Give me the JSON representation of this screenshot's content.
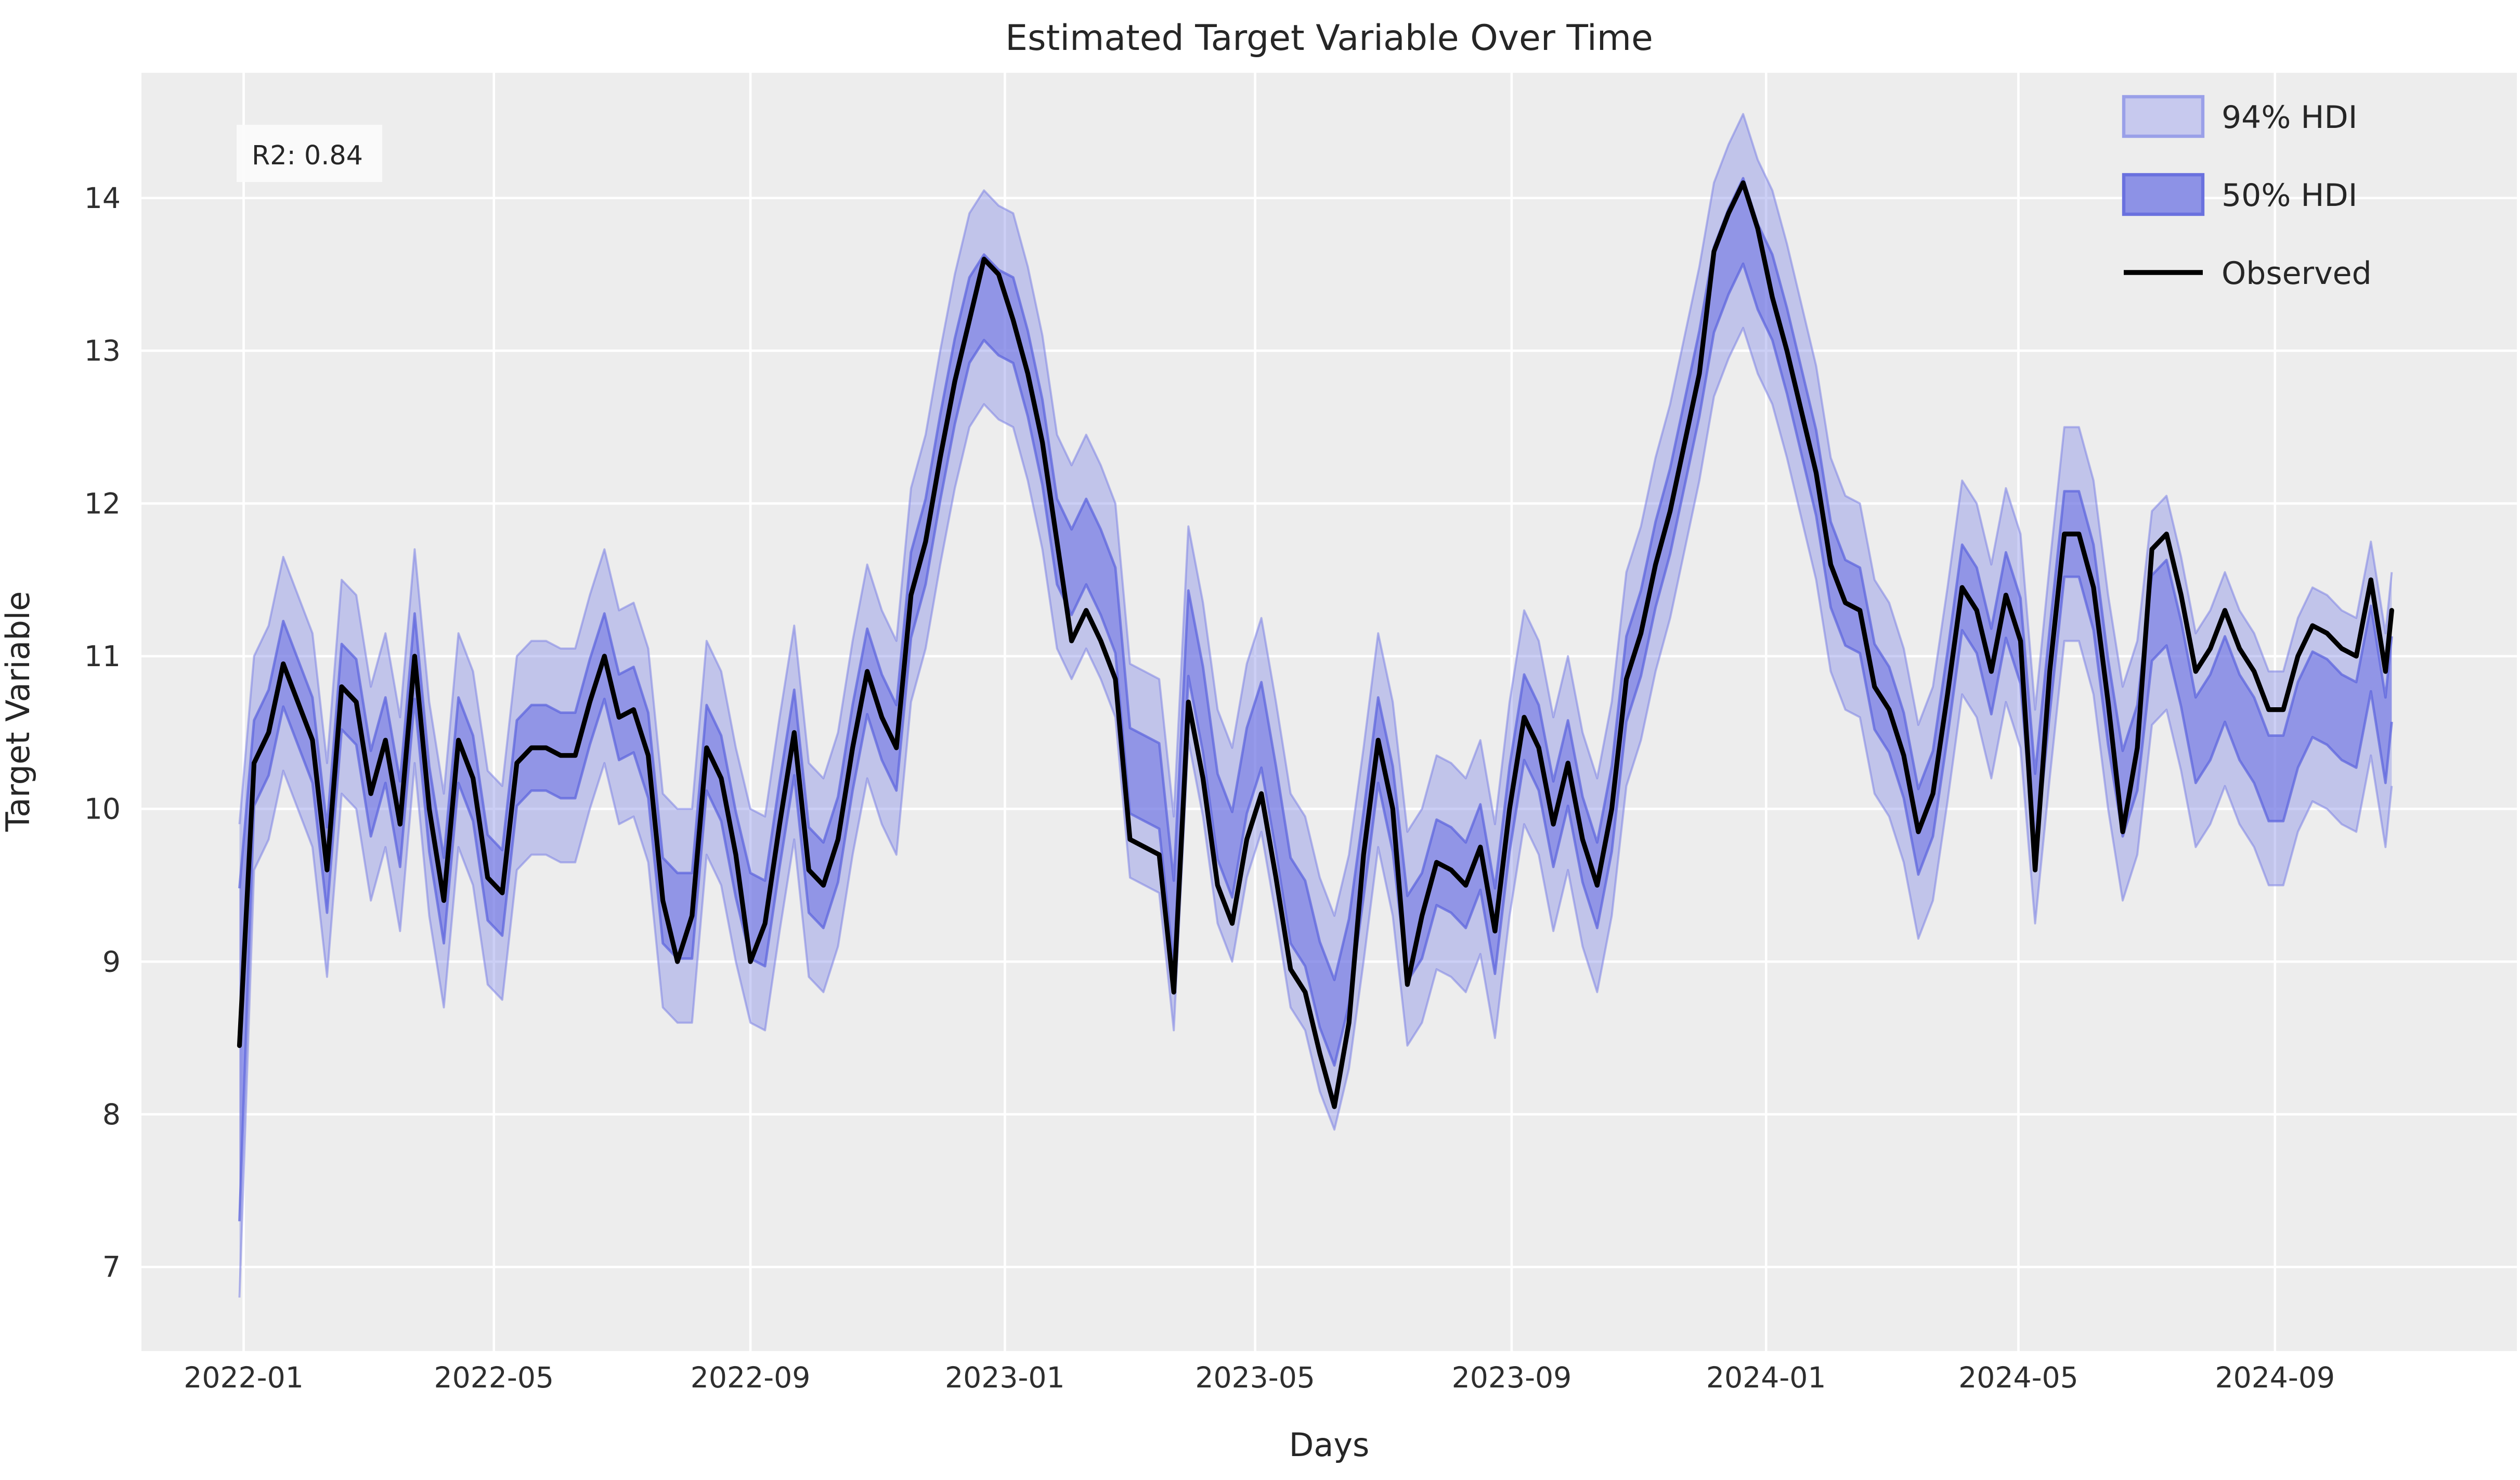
{
  "figure": {
    "title": "Estimated Target Variable Over Time",
    "xlabel": "Days",
    "ylabel": "Target Variable",
    "annotation_r2": "R2: 0.84"
  },
  "legend": {
    "position": "upper right",
    "items": [
      {
        "label": "94% HDI",
        "type": "patch"
      },
      {
        "label": "50% HDI",
        "type": "patch"
      },
      {
        "label": "Observed",
        "type": "line"
      }
    ]
  },
  "chart_data": {
    "type": "line",
    "title": "Estimated Target Variable Over Time",
    "xlabel": "Days",
    "ylabel": "Target Variable",
    "grid": true,
    "legend_position": "upper right",
    "annotation": {
      "text": "R2: 0.84"
    },
    "xlim": [
      "2021-11-13",
      "2024-12-26"
    ],
    "ylim": [
      6.45,
      14.82
    ],
    "ytick_values": [
      7,
      8,
      9,
      10,
      11,
      12,
      13,
      14
    ],
    "xtick_labels": [
      "2022-01",
      "2022-05",
      "2022-09",
      "2023-01",
      "2023-05",
      "2023-09",
      "2024-01",
      "2024-05",
      "2024-09"
    ],
    "xtick_dates": [
      "2022-01-01",
      "2022-05-01",
      "2022-09-01",
      "2023-01-01",
      "2023-05-01",
      "2023-09-01",
      "2024-01-01",
      "2024-05-01",
      "2024-09-01"
    ],
    "colors": {
      "figure_bg": "#ffffff",
      "axes_bg": "#ededed",
      "grid": "#ffffff",
      "observed": "#000000",
      "hdi94_fill": "#c7c9ee",
      "hdi94_edge": "#9aa0e8",
      "hdi50_fill": "#8d92e6",
      "hdi50_edge": "#6a71de",
      "text": "#262626",
      "annotation_bg": "#fbfbfb"
    },
    "dates": [
      "2021-12-30",
      "2022-01-06",
      "2022-01-13",
      "2022-01-20",
      "2022-01-27",
      "2022-02-03",
      "2022-02-10",
      "2022-02-17",
      "2022-02-24",
      "2022-03-03",
      "2022-03-10",
      "2022-03-17",
      "2022-03-24",
      "2022-03-31",
      "2022-04-07",
      "2022-04-14",
      "2022-04-21",
      "2022-04-28",
      "2022-05-05",
      "2022-05-12",
      "2022-05-19",
      "2022-05-26",
      "2022-06-02",
      "2022-06-09",
      "2022-06-16",
      "2022-06-23",
      "2022-06-30",
      "2022-07-07",
      "2022-07-14",
      "2022-07-21",
      "2022-07-28",
      "2022-08-04",
      "2022-08-11",
      "2022-08-18",
      "2022-08-25",
      "2022-09-01",
      "2022-09-08",
      "2022-09-15",
      "2022-09-22",
      "2022-09-29",
      "2022-10-06",
      "2022-10-13",
      "2022-10-20",
      "2022-10-27",
      "2022-11-03",
      "2022-11-10",
      "2022-11-17",
      "2022-11-24",
      "2022-12-01",
      "2022-12-08",
      "2022-12-15",
      "2022-12-22",
      "2022-12-29",
      "2023-01-05",
      "2023-01-12",
      "2023-01-19",
      "2023-01-26",
      "2023-02-02",
      "2023-02-09",
      "2023-02-16",
      "2023-02-23",
      "2023-03-02",
      "2023-03-09",
      "2023-03-16",
      "2023-03-23",
      "2023-03-30",
      "2023-04-06",
      "2023-04-13",
      "2023-04-20",
      "2023-04-27",
      "2023-05-04",
      "2023-05-11",
      "2023-05-18",
      "2023-05-25",
      "2023-06-01",
      "2023-06-08",
      "2023-06-15",
      "2023-06-22",
      "2023-06-29",
      "2023-07-06",
      "2023-07-13",
      "2023-07-20",
      "2023-07-27",
      "2023-08-03",
      "2023-08-10",
      "2023-08-17",
      "2023-08-24",
      "2023-08-31",
      "2023-09-07",
      "2023-09-14",
      "2023-09-21",
      "2023-09-28",
      "2023-10-05",
      "2023-10-12",
      "2023-10-19",
      "2023-10-26",
      "2023-11-02",
      "2023-11-09",
      "2023-11-16",
      "2023-11-23",
      "2023-11-30",
      "2023-12-07",
      "2023-12-14",
      "2023-12-21",
      "2023-12-28",
      "2024-01-04",
      "2024-01-11",
      "2024-01-18",
      "2024-01-25",
      "2024-02-01",
      "2024-02-08",
      "2024-02-15",
      "2024-02-22",
      "2024-02-29",
      "2024-03-07",
      "2024-03-14",
      "2024-03-21",
      "2024-03-28",
      "2024-04-04",
      "2024-04-11",
      "2024-04-18",
      "2024-04-25",
      "2024-05-02",
      "2024-05-09",
      "2024-05-16",
      "2024-05-23",
      "2024-05-30",
      "2024-06-06",
      "2024-06-13",
      "2024-06-20",
      "2024-06-27",
      "2024-07-04",
      "2024-07-11",
      "2024-07-18",
      "2024-07-25",
      "2024-08-01",
      "2024-08-08",
      "2024-08-15",
      "2024-08-22",
      "2024-08-29",
      "2024-09-05",
      "2024-09-12",
      "2024-09-19",
      "2024-09-26",
      "2024-10-03",
      "2024-10-10",
      "2024-10-17",
      "2024-10-24",
      "2024-10-27"
    ],
    "series": [
      {
        "name": "Observed",
        "values": [
          8.45,
          10.3,
          10.5,
          10.95,
          10.7,
          10.45,
          9.6,
          10.8,
          10.7,
          10.1,
          10.45,
          9.9,
          11.0,
          10.0,
          9.4,
          10.45,
          10.2,
          9.55,
          9.45,
          10.3,
          10.4,
          10.4,
          10.35,
          10.35,
          10.7,
          11.0,
          10.6,
          10.65,
          10.35,
          9.4,
          9.0,
          9.3,
          10.4,
          10.2,
          9.7,
          9.0,
          9.25,
          9.9,
          10.5,
          9.6,
          9.5,
          9.8,
          10.4,
          10.9,
          10.6,
          10.4,
          11.4,
          11.75,
          12.3,
          12.8,
          13.2,
          13.6,
          13.5,
          13.2,
          12.85,
          12.4,
          11.75,
          11.1,
          11.3,
          11.1,
          10.85,
          9.8,
          9.75,
          9.7,
          8.8,
          10.7,
          10.2,
          9.5,
          9.25,
          9.8,
          10.1,
          9.55,
          8.95,
          8.8,
          8.4,
          8.05,
          8.6,
          9.7,
          10.45,
          10.0,
          8.85,
          9.3,
          9.65,
          9.6,
          9.5,
          9.75,
          9.2,
          10.0,
          10.6,
          10.4,
          9.9,
          10.3,
          9.8,
          9.5,
          10.0,
          10.85,
          11.15,
          11.6,
          11.95,
          12.4,
          12.85,
          13.65,
          13.9,
          14.1,
          13.8,
          13.35,
          13.0,
          12.6,
          12.2,
          11.6,
          11.35,
          11.3,
          10.8,
          10.65,
          10.35,
          9.85,
          10.1,
          10.75,
          11.45,
          11.3,
          10.9,
          11.4,
          11.1,
          9.6,
          10.9,
          11.8,
          11.8,
          11.45,
          10.7,
          9.85,
          10.4,
          11.7,
          11.8,
          11.4,
          10.9,
          11.05,
          11.3,
          11.05,
          10.9,
          10.65,
          10.65,
          11.0,
          11.2,
          11.15,
          11.05,
          11.0,
          11.5,
          10.9,
          11.3
        ]
      }
    ],
    "posterior_mean": [
      9.2,
      10.3,
      10.5,
      10.95,
      10.7,
      10.45,
      9.6,
      10.8,
      10.7,
      10.1,
      10.45,
      9.9,
      11.0,
      10.0,
      9.4,
      10.45,
      10.2,
      9.55,
      9.45,
      10.3,
      10.4,
      10.4,
      10.35,
      10.35,
      10.7,
      11.0,
      10.6,
      10.65,
      10.35,
      9.4,
      9.3,
      9.3,
      10.4,
      10.2,
      9.7,
      9.3,
      9.25,
      9.9,
      10.5,
      9.6,
      9.5,
      9.8,
      10.4,
      10.9,
      10.6,
      10.4,
      11.4,
      11.75,
      12.3,
      12.8,
      13.2,
      13.35,
      13.25,
      13.2,
      12.85,
      12.4,
      11.75,
      11.55,
      11.75,
      11.55,
      11.3,
      10.25,
      10.2,
      10.15,
      9.25,
      11.15,
      10.65,
      9.95,
      9.7,
      10.25,
      10.55,
      10.0,
      9.4,
      9.25,
      8.85,
      8.6,
      9.0,
      9.7,
      10.45,
      10.0,
      9.15,
      9.3,
      9.65,
      9.6,
      9.5,
      9.75,
      9.2,
      10.0,
      10.6,
      10.4,
      9.9,
      10.3,
      9.8,
      9.5,
      10.0,
      10.85,
      11.15,
      11.6,
      11.95,
      12.4,
      12.85,
      13.4,
      13.65,
      13.85,
      13.55,
      13.35,
      13.0,
      12.6,
      12.2,
      11.6,
      11.35,
      11.3,
      10.8,
      10.65,
      10.35,
      9.85,
      10.1,
      10.75,
      11.45,
      11.3,
      10.9,
      11.4,
      11.1,
      9.95,
      10.9,
      11.8,
      11.8,
      11.45,
      10.7,
      10.1,
      10.4,
      11.25,
      11.35,
      10.95,
      10.45,
      10.6,
      10.85,
      10.6,
      10.45,
      10.2,
      10.2,
      10.55,
      10.75,
      10.7,
      10.6,
      10.55,
      11.05,
      10.45,
      10.85
    ],
    "bands": [
      {
        "name": "94% HDI",
        "halfwidth": 0.7
      },
      {
        "name": "50% HDI",
        "halfwidth": 0.28
      }
    ],
    "first_point_band_overrides": {
      "hdi94_lo": 6.8,
      "hdi50_lo": 7.3
    }
  }
}
